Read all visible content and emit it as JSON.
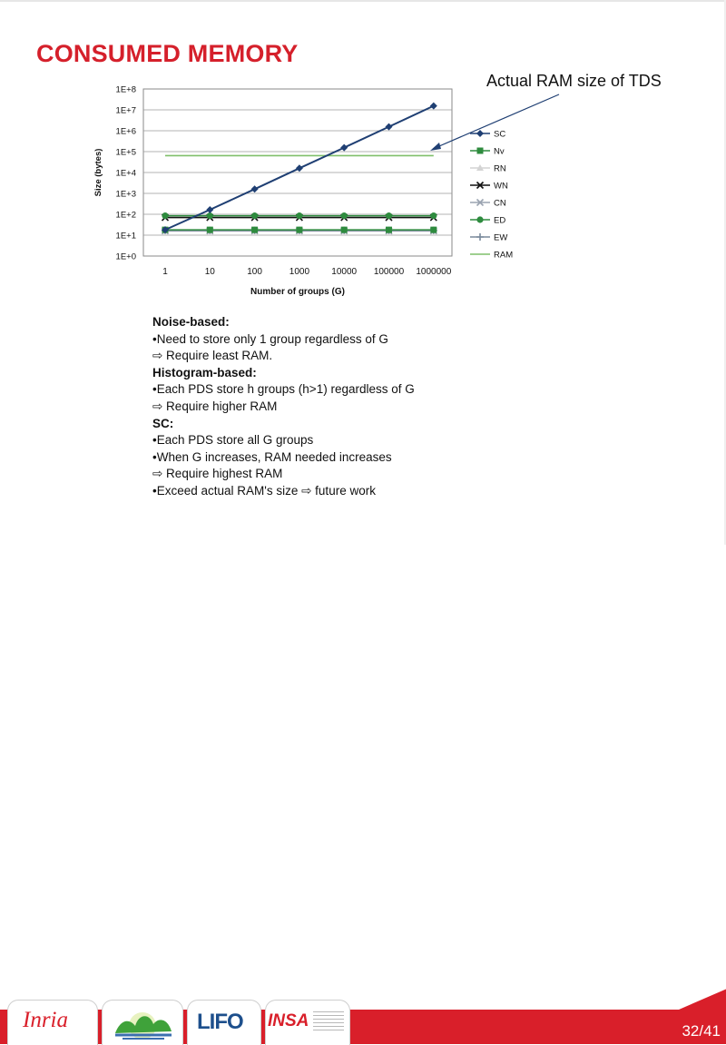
{
  "slide": {
    "title": "CONSUMED MEMORY",
    "annotation": "Actual RAM size of TDS",
    "page_number": "32/41"
  },
  "notes": [
    {
      "text": "Noise-based:",
      "style": "heading"
    },
    {
      "text": "•Need to store only 1 group regardless of G",
      "style": "bullet"
    },
    {
      "text": "⇨ Require least RAM.",
      "style": "sub"
    },
    {
      "text": "Histogram-based:",
      "style": "heading"
    },
    {
      "text": "•Each PDS store h groups (h>1) regardless of G",
      "style": "bullet"
    },
    {
      "text": "⇨ Require higher RAM",
      "style": "sub"
    },
    {
      "text": "SC:",
      "style": "heading"
    },
    {
      "text": "Each PDS store all G groups",
      "style": "bullet-plain"
    },
    {
      "text": "•When G increases, RAM needed increases",
      "style": "bullet"
    },
    {
      "text": "⇨ Require highest RAM",
      "style": "sub"
    },
    {
      "text": "•Exceed actual RAM's size ⇨ future work",
      "style": "bullet"
    }
  ],
  "footer": {
    "logos": [
      {
        "name": "inria-logo",
        "text": "Inria"
      },
      {
        "name": "landscape-logo",
        "text": ""
      },
      {
        "name": "lifo-logo",
        "text": "LIFO"
      },
      {
        "name": "insa-logo",
        "text": "INSA"
      }
    ],
    "colors": {
      "band": "#d91f2a"
    }
  },
  "chart_data": {
    "type": "line",
    "ylabel": "Size (bytes)",
    "xlabel": "Number of groups (G)",
    "x_tick_labels": [
      "1",
      "10",
      "100",
      "1000",
      "10000",
      "100000",
      "1000000"
    ],
    "y_tick_labels": [
      "1E+0",
      "1E+1",
      "1E+2",
      "1E+3",
      "1E+4",
      "1E+5",
      "1E+6",
      "1E+7",
      "1E+8"
    ],
    "y_scale": "log",
    "ylim": [
      1,
      100000000
    ],
    "x": [
      1,
      10,
      100,
      1000,
      10000,
      100000,
      1000000
    ],
    "legend_position": "right",
    "series": [
      {
        "name": "SC",
        "color": "#1f3f73",
        "marker": "diamond",
        "values": [
          18,
          165,
          1600,
          16000,
          155000,
          1550000,
          15500000
        ]
      },
      {
        "name": "Nv",
        "color": "#2e8b3e",
        "marker": "square",
        "values": [
          18,
          18,
          18,
          18,
          18,
          18,
          18
        ]
      },
      {
        "name": "RN",
        "color": "#d4d4d4",
        "marker": "triangle",
        "values": [
          16,
          16,
          16,
          16,
          16,
          16,
          16
        ]
      },
      {
        "name": "WN",
        "color": "#111111",
        "marker": "x",
        "values": [
          70,
          70,
          70,
          70,
          70,
          70,
          70
        ]
      },
      {
        "name": "CN",
        "color": "#9aa3b0",
        "marker": "x",
        "values": [
          16,
          16,
          16,
          16,
          16,
          16,
          16
        ]
      },
      {
        "name": "ED",
        "color": "#2e8b3e",
        "marker": "circle",
        "values": [
          85,
          85,
          85,
          85,
          85,
          85,
          85
        ]
      },
      {
        "name": "EW",
        "color": "#7a8a9c",
        "marker": "plus",
        "values": [
          17,
          17,
          17,
          17,
          17,
          17,
          17
        ]
      },
      {
        "name": "RAM",
        "color": "#7fbf6a",
        "marker": "none",
        "values": [
          64000,
          64000,
          64000,
          64000,
          64000,
          64000,
          64000
        ]
      }
    ]
  }
}
